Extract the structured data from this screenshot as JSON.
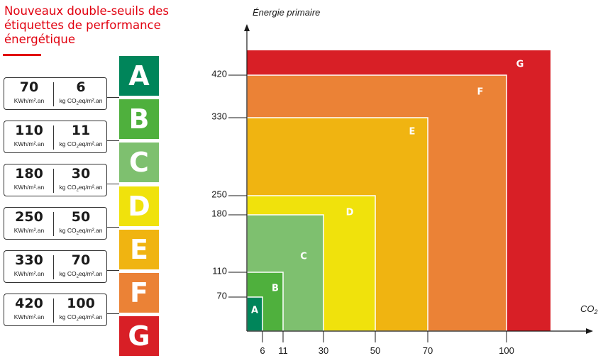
{
  "title": "Nouveaux double-seuils des étiquettes de performance énergétique",
  "units": {
    "energy": "KWh/m².an",
    "co2_prefix": "kg CO",
    "co2_sub": "2",
    "co2_suffix": "eq/m².an"
  },
  "thresholds": [
    {
      "energy": "70",
      "co2": "6"
    },
    {
      "energy": "110",
      "co2": "11"
    },
    {
      "energy": "180",
      "co2": "30"
    },
    {
      "energy": "250",
      "co2": "50"
    },
    {
      "energy": "330",
      "co2": "70"
    },
    {
      "energy": "420",
      "co2": "100"
    }
  ],
  "classes": [
    {
      "letter": "A",
      "color": "#00855a"
    },
    {
      "letter": "B",
      "color": "#4fb03d"
    },
    {
      "letter": "C",
      "color": "#7ec06f"
    },
    {
      "letter": "D",
      "color": "#f0e20c"
    },
    {
      "letter": "E",
      "color": "#f0b411"
    },
    {
      "letter": "F",
      "color": "#eb8236"
    },
    {
      "letter": "G",
      "color": "#d81f26"
    }
  ],
  "chart_data": {
    "type": "area",
    "ylabel": "Énergie primaire",
    "xlabel": "CO",
    "xlabel_sub": "2",
    "xticks": [
      6,
      11,
      30,
      50,
      70,
      100
    ],
    "yticks": [
      70,
      110,
      180,
      250,
      330,
      420
    ],
    "xlim": [
      0,
      117
    ],
    "ylim": [
      0,
      470
    ],
    "regions": [
      {
        "label": "G",
        "x_max": null,
        "y_max": null,
        "color": "#d81f26"
      },
      {
        "label": "F",
        "x_max": 100,
        "y_max": 420,
        "color": "#eb8236"
      },
      {
        "label": "E",
        "x_max": 70,
        "y_max": 330,
        "color": "#f0b411"
      },
      {
        "label": "D",
        "x_max": 50,
        "y_max": 250,
        "color": "#f0e20c"
      },
      {
        "label": "C",
        "x_max": 30,
        "y_max": 180,
        "color": "#7ec06f"
      },
      {
        "label": "B",
        "x_max": 11,
        "y_max": 110,
        "color": "#4fb03d"
      },
      {
        "label": "A",
        "x_max": 6,
        "y_max": 70,
        "color": "#00855a"
      }
    ]
  }
}
